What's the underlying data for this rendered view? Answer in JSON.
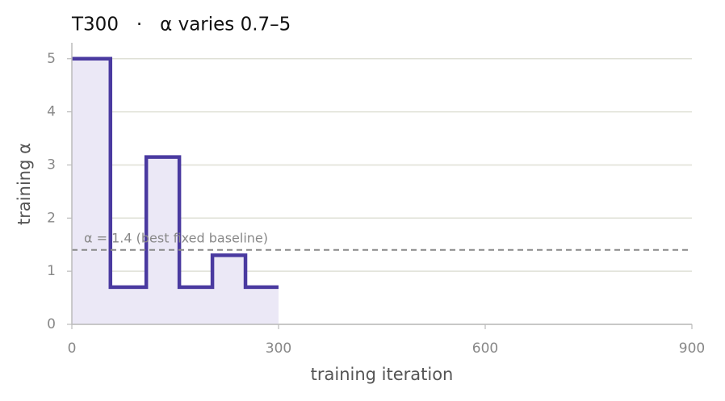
{
  "chart_data": {
    "type": "line",
    "step": "post",
    "title": "T300   ·   α varies 0.7–5",
    "xlabel": "training iteration",
    "ylabel": "training α",
    "x": [
      0,
      56,
      108,
      156,
      204,
      252,
      300
    ],
    "series": [
      {
        "color": "#4a3aa0",
        "fill_color": "#ebe8f6",
        "values": [
          5,
          0.7,
          3.15,
          0.7,
          1.3,
          0.7,
          0.7
        ]
      }
    ],
    "reference_line": {
      "value": 1.4,
      "label": "α = 1.4 (best fixed baseline)",
      "color": "#888888"
    },
    "xlim": [
      0,
      900
    ],
    "xticks": [
      0,
      300,
      600,
      900
    ],
    "ylim": [
      0,
      5.3
    ],
    "yticks": [
      0,
      1,
      2,
      3,
      4,
      5
    ],
    "grid": true
  }
}
